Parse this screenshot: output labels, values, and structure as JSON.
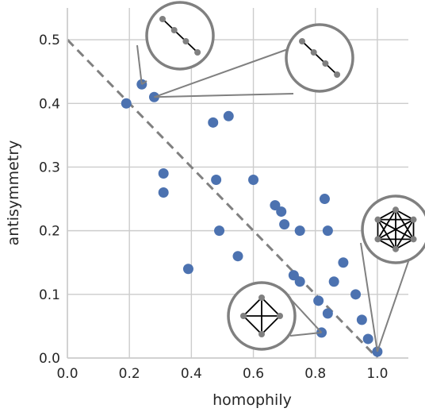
{
  "chart_data": {
    "type": "scatter",
    "xlabel": "homophily",
    "ylabel": "antisymmetry",
    "xlim": [
      0.0,
      1.1
    ],
    "ylim": [
      0.0,
      0.55
    ],
    "xticks": [
      "0.0",
      "0.2",
      "0.4",
      "0.6",
      "0.8",
      "1.0"
    ],
    "yticks": [
      "0.0",
      "0.1",
      "0.2",
      "0.3",
      "0.4",
      "0.5"
    ],
    "grid": true,
    "reference_line": {
      "style": "dashed",
      "from": [
        0.0,
        0.5
      ],
      "to": [
        1.0,
        0.0
      ]
    },
    "series": [
      {
        "color": "#4C72B0",
        "points": [
          [
            0.19,
            0.4
          ],
          [
            0.24,
            0.43
          ],
          [
            0.28,
            0.41
          ],
          [
            0.31,
            0.29
          ],
          [
            0.31,
            0.26
          ],
          [
            0.39,
            0.14
          ],
          [
            0.47,
            0.37
          ],
          [
            0.48,
            0.28
          ],
          [
            0.49,
            0.2
          ],
          [
            0.52,
            0.38
          ],
          [
            0.55,
            0.16
          ],
          [
            0.6,
            0.28
          ],
          [
            0.67,
            0.24
          ],
          [
            0.69,
            0.23
          ],
          [
            0.7,
            0.21
          ],
          [
            0.73,
            0.13
          ],
          [
            0.75,
            0.2
          ],
          [
            0.75,
            0.12
          ],
          [
            0.81,
            0.09
          ],
          [
            0.82,
            0.04
          ],
          [
            0.83,
            0.25
          ],
          [
            0.84,
            0.2
          ],
          [
            0.84,
            0.07
          ],
          [
            0.86,
            0.12
          ],
          [
            0.89,
            0.15
          ],
          [
            0.93,
            0.1
          ],
          [
            0.95,
            0.06
          ],
          [
            0.97,
            0.03
          ],
          [
            1.0,
            0.01
          ]
        ]
      }
    ],
    "insets": [
      {
        "graph": "path",
        "target": [
          0.24,
          0.43
        ]
      },
      {
        "graph": "path",
        "target": [
          0.28,
          0.41
        ]
      },
      {
        "graph": "complete-4",
        "target": [
          0.82,
          0.04
        ]
      },
      {
        "graph": "complete-6",
        "target": [
          1.0,
          0.01
        ]
      }
    ]
  },
  "colors": {
    "points": "#4C72B0",
    "grid": "#cccccc",
    "reference_line": "#808080",
    "inset_border": "#808080",
    "inset_edge": "#000000",
    "inset_node": "#808080"
  }
}
